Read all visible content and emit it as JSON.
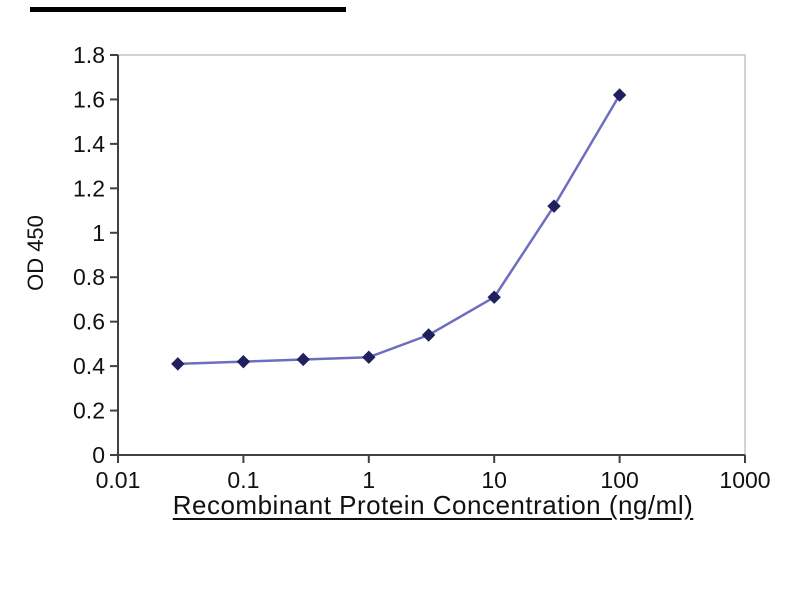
{
  "chart_data": {
    "type": "line",
    "title": "",
    "xlabel": "Recombinant Protein Concentration (ng/ml)",
    "ylabel": "OD 450",
    "x_scale": "log",
    "xlim": [
      0.01,
      1000
    ],
    "ylim": [
      0,
      1.8
    ],
    "x_ticks": [
      0.01,
      0.1,
      1,
      10,
      100,
      1000
    ],
    "x_tick_labels": [
      "0.01",
      "0.1",
      "1",
      "10",
      "100",
      "1000"
    ],
    "y_ticks": [
      0,
      0.2,
      0.4,
      0.6,
      0.8,
      1,
      1.2,
      1.4,
      1.6,
      1.8
    ],
    "y_tick_labels": [
      "0",
      "0.2",
      "0.4",
      "0.6",
      "0.8",
      "1",
      "1.2",
      "1.4",
      "1.6",
      "1.8"
    ],
    "grid": false,
    "legend": "none",
    "colors": {
      "axis": "#404040",
      "frame": "#c4c4c4",
      "text": "#111111"
    },
    "series": [
      {
        "name": "OD 450",
        "x": [
          0.03,
          0.1,
          0.3,
          1,
          3,
          10,
          30,
          100
        ],
        "y": [
          0.41,
          0.42,
          0.43,
          0.44,
          0.54,
          0.71,
          1.12,
          1.62
        ],
        "line_color": "#6e6ec0",
        "marker": "diamond",
        "marker_color": "#20205f"
      }
    ]
  }
}
